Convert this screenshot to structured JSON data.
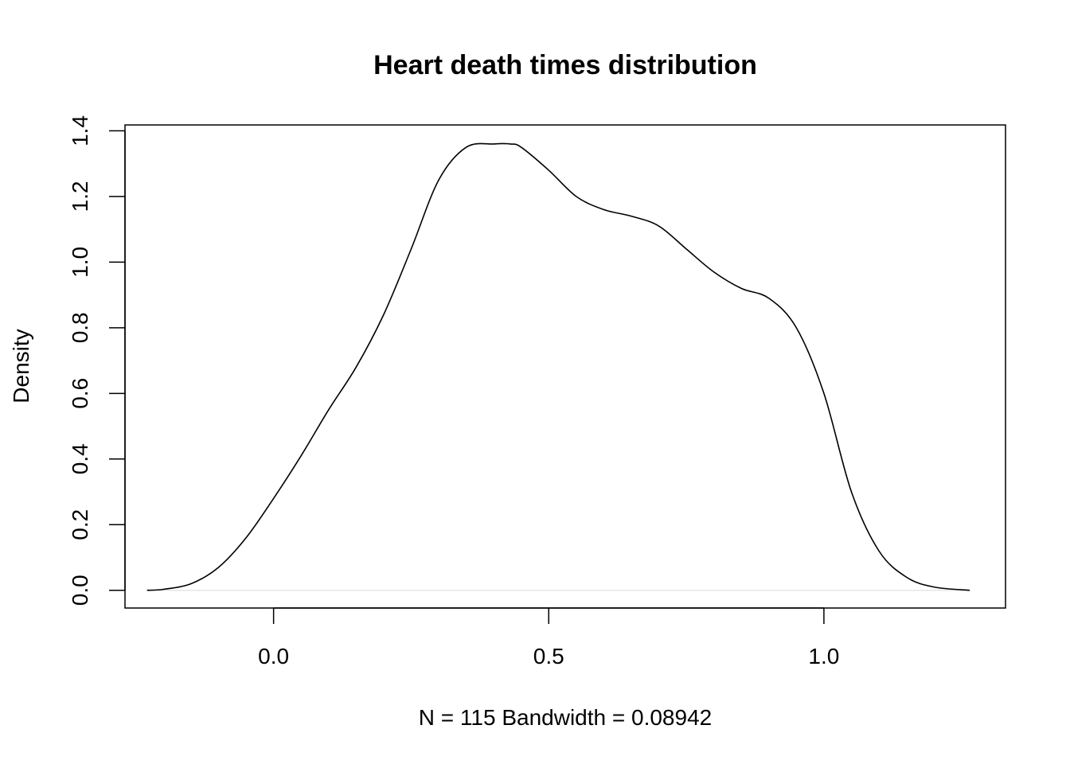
{
  "chart_data": {
    "type": "line",
    "title": "Heart death times distribution",
    "xlabel": "N = 115   Bandwidth = 0.08942",
    "ylabel": "Density",
    "xlim": [
      -0.27,
      1.33
    ],
    "ylim": [
      -0.054,
      1.418
    ],
    "x_ticks": [
      0.0,
      0.5,
      1.0
    ],
    "x_tick_labels": [
      "0.0",
      "0.5",
      "1.0"
    ],
    "y_ticks": [
      0.0,
      0.2,
      0.4,
      0.6,
      0.8,
      1.0,
      1.2,
      1.4
    ],
    "y_tick_labels": [
      "0.0",
      "0.2",
      "0.4",
      "0.6",
      "0.8",
      "1.0",
      "1.2",
      "1.4"
    ],
    "grid": false,
    "legend": "none",
    "baseline_y": 0,
    "line_color": "#000000",
    "series": [
      {
        "x": [
          -0.23,
          -0.2,
          -0.15,
          -0.1,
          -0.05,
          0.0,
          0.05,
          0.1,
          0.15,
          0.2,
          0.25,
          0.3,
          0.35,
          0.4,
          0.43,
          0.45,
          0.5,
          0.55,
          0.6,
          0.65,
          0.7,
          0.75,
          0.8,
          0.85,
          0.9,
          0.95,
          1.0,
          1.05,
          1.1,
          1.15,
          1.2,
          1.265
        ],
        "y": [
          0.0,
          0.003,
          0.02,
          0.07,
          0.16,
          0.28,
          0.41,
          0.55,
          0.68,
          0.84,
          1.04,
          1.25,
          1.35,
          1.36,
          1.36,
          1.35,
          1.28,
          1.2,
          1.16,
          1.14,
          1.11,
          1.04,
          0.97,
          0.92,
          0.89,
          0.8,
          0.6,
          0.3,
          0.12,
          0.04,
          0.01,
          0.0
        ]
      }
    ]
  }
}
